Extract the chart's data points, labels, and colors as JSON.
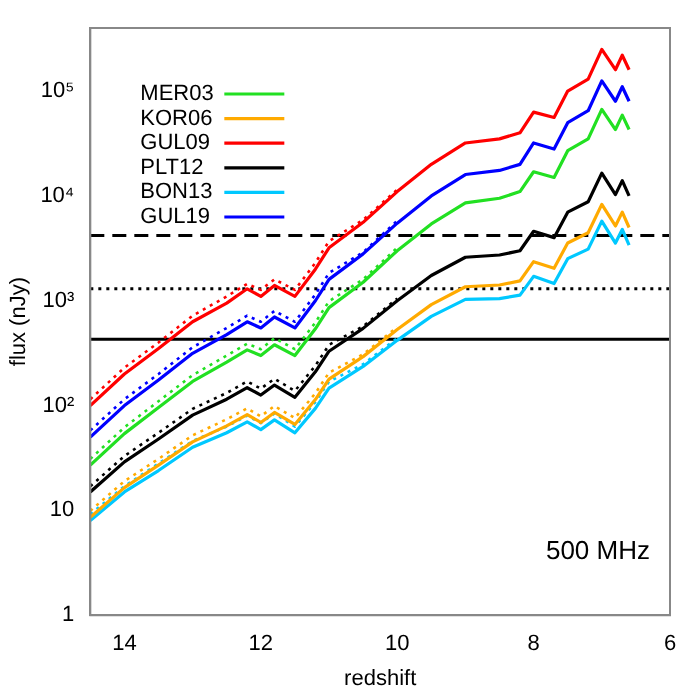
{
  "chart_data": {
    "type": "line",
    "xlabel": "redshift",
    "ylabel": "flux (nJy)",
    "log": "y",
    "grid": false,
    "legend": "top left",
    "marker": "none",
    "x": [
      14.5,
      14,
      13.5,
      13,
      12.5,
      12.2,
      12,
      11.8,
      11.5,
      11.2,
      11,
      10.5,
      10,
      9.5,
      9,
      8.5,
      8.2,
      8,
      7.7,
      7.5,
      7.2,
      7,
      6.8,
      6.7,
      6.6
    ],
    "xlim": [
      14.5,
      6
    ],
    "xticks": [
      14,
      12,
      10,
      8,
      6
    ],
    "ylim": [
      1,
      400000
    ],
    "yticks": [
      1,
      10,
      {
        "value": 100,
        "label": "10²"
      },
      {
        "value": 1000,
        "label": "10³"
      },
      {
        "value": 10000,
        "label": "10⁴"
      },
      {
        "value": 100000,
        "label": "10⁵"
      }
    ],
    "series": [
      {
        "name": "MER03",
        "color": "#22e022",
        "line_style": "solid",
        "values": [
          27,
          54,
          96,
          170,
          260,
          340,
          300,
          380,
          300,
          540,
          860,
          1500,
          3000,
          5400,
          8600,
          9500,
          11000,
          17000,
          15000,
          27000,
          35000,
          67000,
          43000,
          59000,
          43000
        ]
      },
      {
        "name": "KOR06",
        "color": "#ffaa00",
        "line_style": "solid",
        "values": [
          8.6,
          16.5,
          27,
          45,
          64,
          82,
          69,
          86,
          66,
          114,
          179,
          293,
          532,
          919,
          1360,
          1414,
          1545,
          2360,
          2040,
          3560,
          4450,
          8300,
          5170,
          7010,
          5000
        ]
      },
      {
        "name": "GUL09",
        "color": "#ff0000",
        "line_style": "solid",
        "values": [
          100,
          200,
          350,
          630,
          950,
          1300,
          1100,
          1400,
          1100,
          2000,
          3200,
          5600,
          11000,
          20000,
          32000,
          35000,
          40000,
          63000,
          56000,
          100000,
          130000,
          250000,
          160000,
          220000,
          160000
        ]
      },
      {
        "name": "PLT12",
        "color": "#000000",
        "line_style": "solid",
        "values": [
          15,
          29,
          48,
          81,
          115,
          148,
          126,
          157,
          120,
          210,
          330,
          545,
          1000,
          1740,
          2600,
          2730,
          3000,
          4600,
          4000,
          7000,
          8800,
          16500,
          10300,
          14000,
          10000
        ]
      },
      {
        "name": "BON13",
        "color": "#00c8ff",
        "line_style": "solid",
        "values": [
          8,
          15,
          24,
          40,
          55,
          70,
          59,
          73,
          55,
          94,
          147,
          236,
          419,
          709,
          1030,
          1046,
          1130,
          1710,
          1460,
          2520,
          3110,
          5750,
          3550,
          4790,
          3400
        ]
      },
      {
        "name": "GUL19",
        "color": "#0000ff",
        "line_style": "solid",
        "values": [
          50,
          100,
          175,
          315,
          475,
          630,
          550,
          700,
          550,
          1000,
          1600,
          2800,
          5500,
          10000,
          16000,
          17500,
          20000,
          32000,
          28000,
          50000,
          65000,
          125000,
          80000,
          110000,
          80000
        ]
      },
      {
        "color": "#22e022",
        "line_style": "dotted",
        "x": [
          14.5,
          14,
          13.5,
          13,
          12.5,
          12.2,
          12,
          11.8,
          11.5,
          11.2,
          11,
          10.5,
          10
        ],
        "values": [
          31,
          62,
          110,
          195,
          300,
          390,
          345,
          440,
          345,
          620,
          990,
          1600,
          3200
        ]
      },
      {
        "color": "#ffaa00",
        "line_style": "dotted",
        "x": [
          14.5,
          14,
          13.5,
          13,
          12.5,
          12.2,
          12,
          11.8,
          11.5,
          11.2,
          11,
          10.5,
          10
        ],
        "values": [
          9.9,
          19,
          31,
          52,
          74,
          94,
          79,
          99,
          76,
          131,
          206,
          308,
          560
        ]
      },
      {
        "color": "#ff0000",
        "line_style": "dotted",
        "x": [
          14.5,
          14,
          13.5,
          13,
          12.5,
          12.2,
          12,
          11.8,
          11.5,
          11.2,
          11,
          10.5,
          10
        ],
        "values": [
          115,
          230,
          400,
          720,
          1100,
          1450,
          1270,
          1600,
          1270,
          2300,
          3700,
          5900,
          11500
        ]
      },
      {
        "color": "#000000",
        "line_style": "dotted",
        "x": [
          14.5,
          14,
          13.5,
          13,
          12.5,
          12.2,
          12,
          11.8,
          11.5,
          11.2,
          11,
          10.5,
          10
        ],
        "values": [
          17,
          33,
          55,
          93,
          132,
          170,
          145,
          180,
          138,
          240,
          380,
          570,
          1050
        ]
      },
      {
        "color": "#00c8ff",
        "line_style": "dotted",
        "x": [
          14.5,
          14,
          13.5,
          13,
          12.5,
          12.2,
          12,
          11.8,
          11.5,
          11.2,
          11,
          10.5,
          10
        ],
        "values": [
          9.2,
          17,
          28,
          46,
          63,
          80,
          68,
          84,
          63,
          108,
          169,
          248,
          440
        ]
      },
      {
        "color": "#0000ff",
        "line_style": "dotted",
        "x": [
          14.5,
          14,
          13.5,
          13,
          12.5,
          12.2,
          12,
          11.8,
          11.5,
          11.2,
          11,
          10.5,
          10
        ],
        "values": [
          58,
          115,
          200,
          360,
          550,
          720,
          630,
          800,
          630,
          1150,
          1840,
          2900,
          5800
        ]
      }
    ],
    "ref_lines": [
      {
        "axis": "y",
        "value": 4200,
        "color": "#000000",
        "line_style": "dashed"
      },
      {
        "axis": "y",
        "value": 1300,
        "color": "#000000",
        "line_style": "dotted"
      },
      {
        "axis": "y",
        "value": 430,
        "color": "#000000",
        "line_style": "solid"
      }
    ],
    "annotations": [
      "500 MHz"
    ]
  }
}
